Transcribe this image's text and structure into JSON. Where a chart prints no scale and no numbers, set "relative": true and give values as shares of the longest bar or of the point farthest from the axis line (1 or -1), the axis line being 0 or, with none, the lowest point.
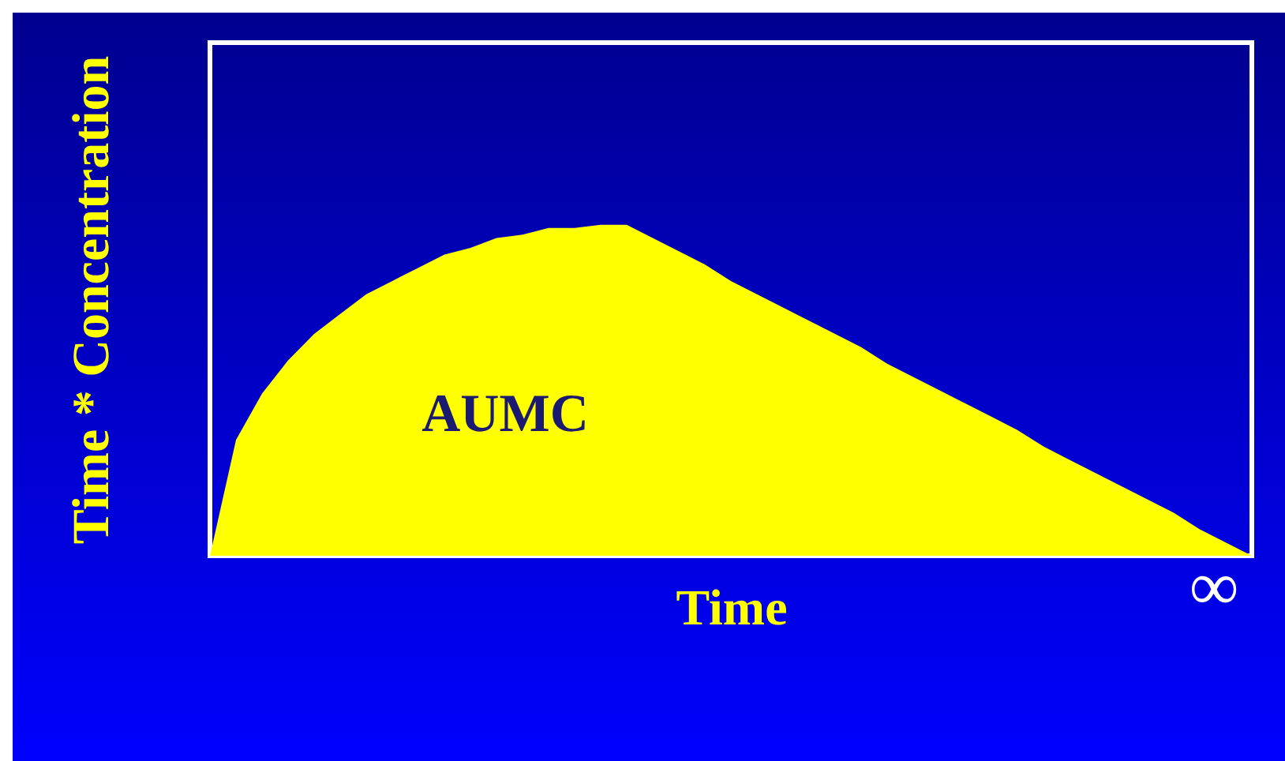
{
  "chart_data": {
    "type": "area",
    "relative": true,
    "xlabel": "Time",
    "ylabel": "Time * Concentration",
    "annotations": [
      "AUMC",
      "∞"
    ],
    "categories": [
      null,
      null,
      null,
      null,
      null,
      null,
      null,
      null,
      null,
      null,
      null,
      null,
      null,
      null,
      null,
      null,
      null,
      null,
      null,
      null,
      null,
      null,
      null,
      null,
      null,
      null,
      null,
      null,
      null,
      null,
      null,
      null,
      null,
      null,
      null,
      null,
      null,
      null,
      null,
      null,
      null
    ],
    "series": [
      {
        "color": "#ffff00",
        "values": [
          0,
          0.35,
          0.49,
          0.59,
          0.67,
          0.73,
          0.79,
          0.83,
          0.87,
          0.91,
          0.93,
          0.96,
          0.97,
          0.99,
          0.99,
          1,
          1,
          0.96,
          0.92,
          0.88,
          0.83,
          0.79,
          0.75,
          0.71,
          0.67,
          0.63,
          0.58,
          0.54,
          0.5,
          0.46,
          0.42,
          0.38,
          0.33,
          0.29,
          0.25,
          0.21,
          0.17,
          0.13,
          0.08,
          0.04,
          0
        ]
      }
    ]
  }
}
